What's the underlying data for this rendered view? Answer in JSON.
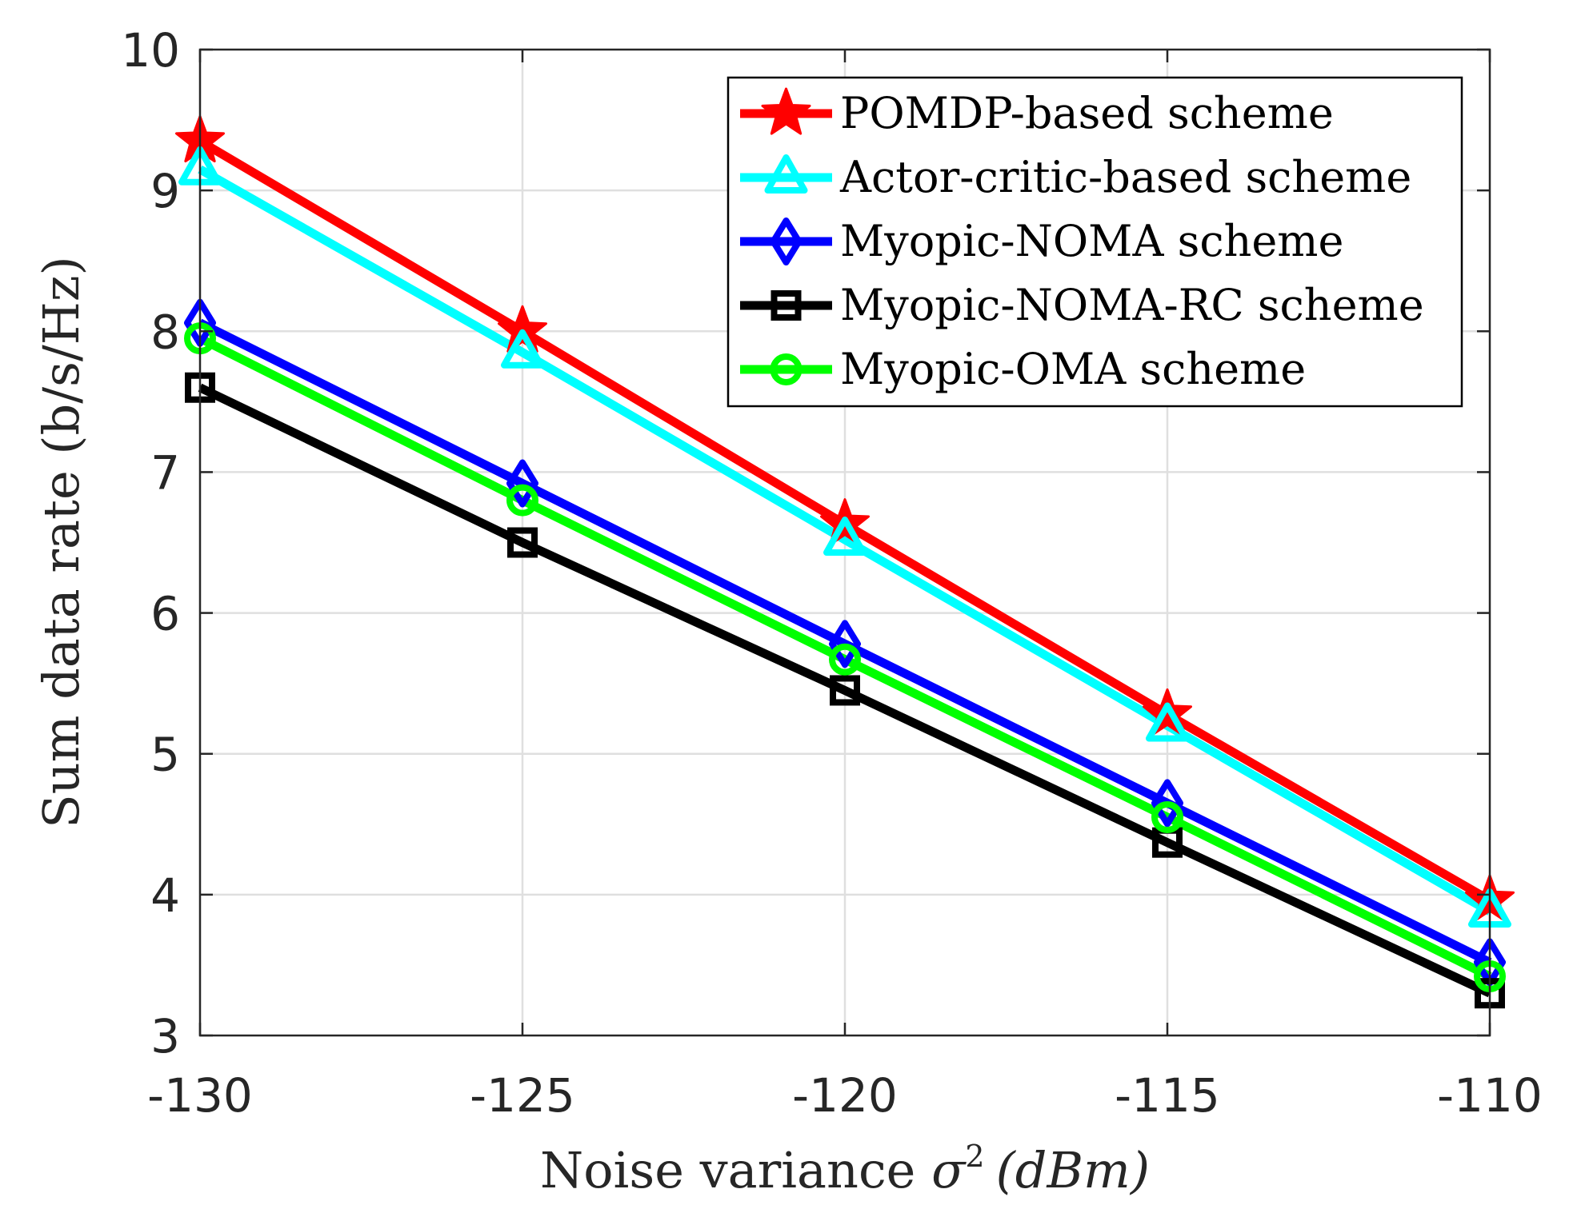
{
  "chart_data": {
    "type": "line",
    "xlabel": {
      "prefix": "Noise variance ",
      "symbol": "σ",
      "sup": "2",
      "unit": "(dBm)"
    },
    "ylabel": "Sum data rate (b/s/Hz)",
    "x": [
      -130,
      -125,
      -120,
      -115,
      -110
    ],
    "x_tick_labels": [
      "-130",
      "-125",
      "-120",
      "-115",
      "-110"
    ],
    "xlim": [
      -130,
      -110
    ],
    "ylim": [
      3,
      10
    ],
    "y_ticks": [
      3,
      4,
      5,
      6,
      7,
      8,
      9,
      10
    ],
    "grid": true,
    "legend_position": "top-right",
    "series": [
      {
        "name": "POMDP-based scheme",
        "color": "#ff0000",
        "marker": "star",
        "values": [
          9.35,
          8.0,
          6.63,
          5.28,
          3.96
        ]
      },
      {
        "name": "Actor-critic-based scheme",
        "color": "#00ffff",
        "marker": "triangle",
        "values": [
          9.15,
          7.85,
          6.52,
          5.2,
          3.88
        ]
      },
      {
        "name": "Myopic-NOMA scheme",
        "color": "#0000ff",
        "marker": "diamond",
        "values": [
          8.06,
          6.92,
          5.78,
          4.65,
          3.52
        ]
      },
      {
        "name": "Myopic-NOMA-RC scheme",
        "color": "#000000",
        "marker": "square",
        "values": [
          7.6,
          6.5,
          5.45,
          4.37,
          3.3
        ]
      },
      {
        "name": "Myopic-OMA scheme",
        "color": "#00ff00",
        "marker": "circle",
        "values": [
          7.95,
          6.8,
          5.67,
          4.55,
          3.42
        ]
      }
    ]
  }
}
